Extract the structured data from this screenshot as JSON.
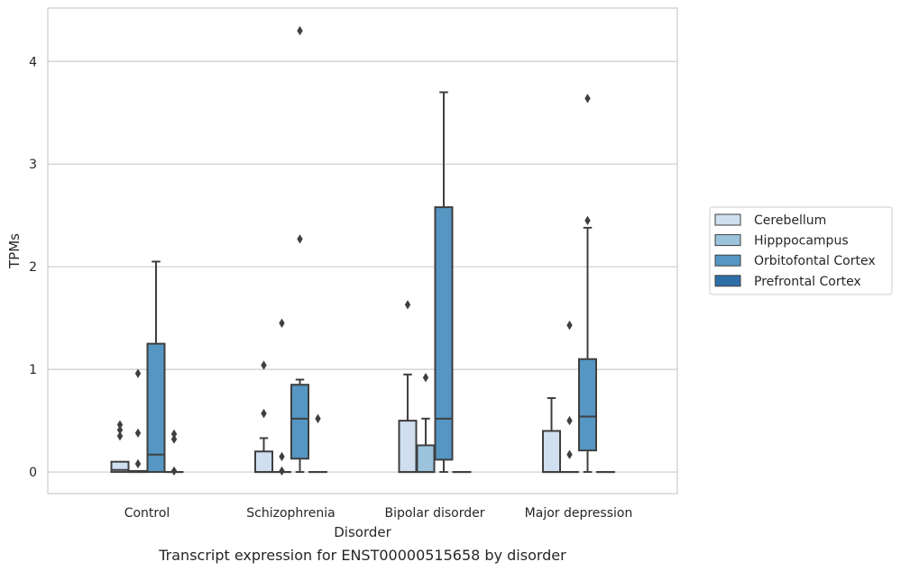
{
  "chart_data": {
    "type": "box",
    "title": "Transcript expression for ENST00000515658 by disorder",
    "xlabel": "Disorder",
    "ylabel": "TPMs",
    "ylim": [
      -0.21,
      4.52
    ],
    "yticks": [
      "0",
      "1",
      "2",
      "3",
      "4"
    ],
    "ytick_values": [
      0,
      1,
      2,
      3,
      4
    ],
    "categories": [
      "Control",
      "Schizophrenia",
      "Bipolar disorder",
      "Major depression"
    ],
    "grid": true,
    "legend_position": "right",
    "series": [
      {
        "name": "Cerebellum",
        "color": "#cfdff0",
        "boxes": [
          {
            "q1": 0.0,
            "median": 0.02,
            "q3": 0.1,
            "whisker_low": 0.0,
            "whisker_high": 0.1,
            "outliers": [
              0.46,
              0.41,
              0.35
            ]
          },
          {
            "q1": 0.0,
            "median": 0.0,
            "q3": 0.2,
            "whisker_low": 0.0,
            "whisker_high": 0.33,
            "outliers": [
              1.04,
              0.57
            ]
          },
          {
            "q1": 0.0,
            "median": 0.0,
            "q3": 0.5,
            "whisker_low": 0.0,
            "whisker_high": 0.95,
            "outliers": [
              1.63
            ]
          },
          {
            "q1": 0.0,
            "median": 0.0,
            "q3": 0.4,
            "whisker_low": 0.0,
            "whisker_high": 0.72,
            "outliers": []
          }
        ]
      },
      {
        "name": "Hipppocampus",
        "color": "#9bc3dc",
        "boxes": [
          {
            "q1": 0.0,
            "median": 0.0,
            "q3": 0.01,
            "whisker_low": 0.0,
            "whisker_high": 0.01,
            "outliers": [
              0.96,
              0.38,
              0.08
            ]
          },
          {
            "q1": 0.0,
            "median": 0.0,
            "q3": 0.0,
            "whisker_low": 0.0,
            "whisker_high": 0.0,
            "outliers": [
              1.45,
              0.15,
              0.01
            ]
          },
          {
            "q1": 0.0,
            "median": 0.0,
            "q3": 0.26,
            "whisker_low": 0.0,
            "whisker_high": 0.52,
            "outliers": [
              0.92
            ]
          },
          {
            "q1": 0.0,
            "median": 0.0,
            "q3": 0.0,
            "whisker_low": 0.0,
            "whisker_high": 0.0,
            "outliers": [
              1.43,
              0.5,
              0.17
            ]
          }
        ]
      },
      {
        "name": "Orbitofontal Cortex",
        "color": "#5596c3",
        "boxes": [
          {
            "q1": 0.0,
            "median": 0.17,
            "q3": 1.25,
            "whisker_low": 0.0,
            "whisker_high": 2.05,
            "outliers": []
          },
          {
            "q1": 0.13,
            "median": 0.52,
            "q3": 0.85,
            "whisker_low": 0.0,
            "whisker_high": 0.9,
            "outliers": [
              4.3,
              2.27
            ]
          },
          {
            "q1": 0.12,
            "median": 0.52,
            "q3": 2.58,
            "whisker_low": 0.0,
            "whisker_high": 3.7,
            "outliers": []
          },
          {
            "q1": 0.21,
            "median": 0.54,
            "q3": 1.1,
            "whisker_low": 0.0,
            "whisker_high": 2.38,
            "outliers": [
              3.64,
              2.45
            ]
          }
        ]
      },
      {
        "name": "Prefrontal Cortex",
        "color": "#2d6ea8",
        "boxes": [
          {
            "q1": 0.0,
            "median": 0.0,
            "q3": 0.0,
            "whisker_low": 0.0,
            "whisker_high": 0.0,
            "outliers": [
              0.37,
              0.32,
              0.01
            ]
          },
          {
            "q1": 0.0,
            "median": 0.0,
            "q3": 0.0,
            "whisker_low": 0.0,
            "whisker_high": 0.0,
            "outliers": [
              0.52
            ]
          },
          {
            "q1": 0.0,
            "median": 0.0,
            "q3": 0.0,
            "whisker_low": 0.0,
            "whisker_high": 0.0,
            "outliers": []
          },
          {
            "q1": 0.0,
            "median": 0.0,
            "q3": 0.0,
            "whisker_low": 0.0,
            "whisker_high": 0.0,
            "outliers": []
          }
        ]
      }
    ],
    "colors": {
      "grid": "#cccccc",
      "frame": "#cccccc",
      "box_edge": "#3f3f3f",
      "outlier": "#3f3f3f"
    }
  }
}
